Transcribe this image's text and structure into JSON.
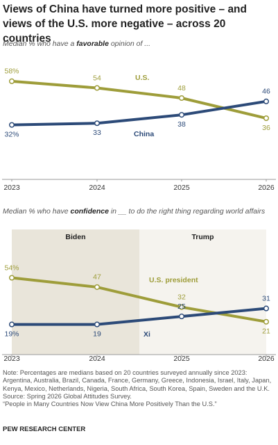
{
  "header": {
    "title": "Views of China have turned more positive – and views of the U.S. more negative – across 20 countries"
  },
  "chart_data": [
    {
      "type": "line",
      "subtitle": [
        "Median % who have a ",
        "favorable",
        " opinion of ..."
      ],
      "categories": [
        "2023",
        "2024",
        "2025",
        "2026"
      ],
      "ylim": [
        0,
        60
      ],
      "series": [
        {
          "name": "U.S.",
          "color": "#9e9d3a",
          "values": [
            58,
            54,
            48,
            36
          ],
          "value_labels": [
            "58%",
            "54",
            "48",
            "36"
          ]
        },
        {
          "name": "China",
          "color": "#2c4a78",
          "values": [
            32,
            33,
            38,
            46
          ],
          "value_labels": [
            "32%",
            "33",
            "38",
            "46"
          ]
        }
      ]
    },
    {
      "type": "line",
      "subtitle": [
        "Median % who have ",
        "confidence",
        " in __ to do the right thing regarding world affairs"
      ],
      "categories": [
        "2023",
        "2024",
        "2025",
        "2026"
      ],
      "periods": [
        "Biden",
        "Trump"
      ],
      "ylim": [
        0,
        60
      ],
      "series": [
        {
          "name": "U.S. president",
          "color": "#9e9d3a",
          "values": [
            54,
            47,
            32,
            21
          ],
          "value_labels": [
            "54%",
            "47",
            "32",
            "21"
          ]
        },
        {
          "name": "Xi",
          "color": "#2c4a78",
          "values": [
            19,
            19,
            25,
            31
          ],
          "value_labels": [
            "19%",
            "19",
            "25",
            "31"
          ]
        }
      ]
    }
  ],
  "notes": {
    "note": "Note: Percentages are medians based on 20 countries surveyed annually since 2023: Argentina, Australia, Brazil, Canada, France, Germany, Greece, Indonesia, Israel, Italy, Japan, Kenya, Mexico, Netherlands, Nigeria, South Africa, South Korea, Spain, Sweden and the U.K.",
    "source": "Source: Spring 2026 Global Attitudes Survey.",
    "report": "“People in Many Countries Now View China More Positively Than the U.S.”",
    "org": "PEW RESEARCH CENTER"
  }
}
